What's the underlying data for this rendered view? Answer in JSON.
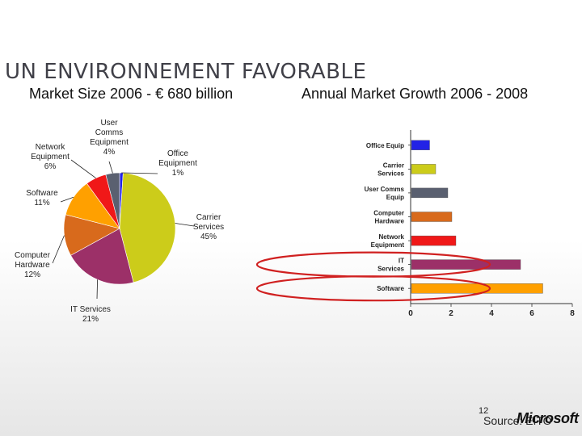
{
  "slide": {
    "title": "UN ENVIRONNEMENT FAVORABLE",
    "page_number": "12",
    "source": "Source: EITO",
    "logo_text": "Microsoft"
  },
  "colors": {
    "office": "#2222e6",
    "carrier": "#cccc1a",
    "usercomms": "#5a6070",
    "computer": "#d86a1c",
    "network": "#f01818",
    "it": "#9c3068",
    "software": "#ffa000",
    "annotation": "#d02020"
  },
  "chart_data": [
    {
      "type": "pie",
      "title": "Market Size 2006 - € 680 billion",
      "slices": [
        {
          "label": "Office Equipment",
          "value": 1,
          "display": "Office\nEquipment\n1%",
          "color": "#2222e6"
        },
        {
          "label": "Carrier Services",
          "value": 45,
          "display": "Carrier\nServices\n45%",
          "color": "#cccc1a"
        },
        {
          "label": "IT Services",
          "value": 21,
          "display": "IT Services\n21%",
          "color": "#9c3068"
        },
        {
          "label": "Computer Hardware",
          "value": 12,
          "display": "Computer\nHardware\n12%",
          "color": "#d86a1c"
        },
        {
          "label": "Software",
          "value": 11,
          "display": "Software\n11%",
          "color": "#ffa000"
        },
        {
          "label": "Network Equipment",
          "value": 6,
          "display": "Network\nEquipment\n6%",
          "color": "#f01818"
        },
        {
          "label": "User Comms Equipment",
          "value": 4,
          "display": "User\nComms\nEquipment\n4%",
          "color": "#5a6070"
        }
      ]
    },
    {
      "type": "bar",
      "orientation": "horizontal",
      "title": "Annual Market Growth 2006 - 2008",
      "categories": [
        "Office Equip",
        "Carrier Services",
        "User Comms Equip",
        "Computer Hardware",
        "Network Equipment",
        "IT Services",
        "Software"
      ],
      "values": [
        0.9,
        1.2,
        1.8,
        2.0,
        2.2,
        5.4,
        6.5
      ],
      "colors": [
        "#2222e6",
        "#cccc1a",
        "#5a6070",
        "#d86a1c",
        "#f01818",
        "#9c3068",
        "#ffa000"
      ],
      "xlim": [
        0,
        8
      ],
      "xticks": [
        0,
        2,
        4,
        6,
        8
      ],
      "highlighted": [
        "IT Services",
        "Software"
      ]
    }
  ]
}
